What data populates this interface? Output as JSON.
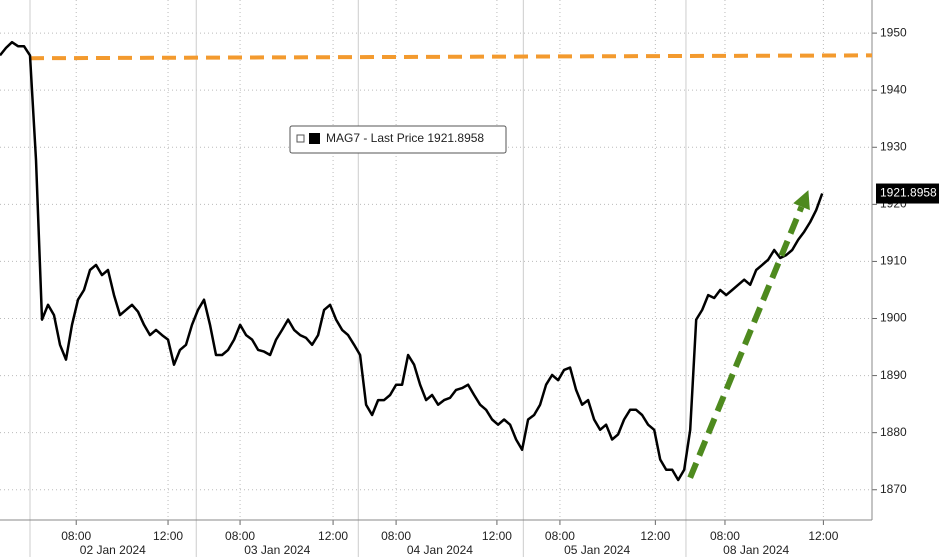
{
  "chart_data": {
    "type": "line",
    "legend_text": "MAG7 - Last Price 1921.8958",
    "last_price_label": "1921.8958",
    "series": [
      {
        "name": "MAG7",
        "color": "#000000",
        "values": [
          1946.1,
          1947.4,
          1948.4,
          1947.7,
          1947.7,
          1946.1,
          1927.8,
          1899.8,
          1902.4,
          1900.6,
          1895.4,
          1892.8,
          1898.9,
          1903.3,
          1905.0,
          1908.5,
          1909.4,
          1907.6,
          1908.5,
          1904.1,
          1900.6,
          1901.5,
          1902.4,
          1901.2,
          1898.9,
          1897.1,
          1898.0,
          1897.1,
          1896.3,
          1891.9,
          1894.5,
          1895.4,
          1898.9,
          1901.5,
          1903.3,
          1898.9,
          1893.6,
          1893.6,
          1894.5,
          1896.3,
          1898.9,
          1897.1,
          1896.3,
          1894.5,
          1894.2,
          1893.6,
          1896.3,
          1898.0,
          1899.8,
          1898.0,
          1897.1,
          1896.6,
          1895.4,
          1897.1,
          1901.5,
          1902.4,
          1899.8,
          1898.0,
          1897.1,
          1895.4,
          1893.6,
          1884.9,
          1883.1,
          1885.7,
          1885.7,
          1886.6,
          1888.4,
          1888.4,
          1893.6,
          1891.9,
          1888.4,
          1885.7,
          1886.6,
          1884.9,
          1885.7,
          1886.1,
          1887.5,
          1887.8,
          1888.4,
          1886.6,
          1884.9,
          1884.0,
          1882.3,
          1881.4,
          1882.3,
          1881.4,
          1878.8,
          1877.0,
          1882.3,
          1883.1,
          1884.9,
          1888.4,
          1890.1,
          1889.2,
          1891.0,
          1891.4,
          1887.5,
          1884.9,
          1885.7,
          1882.3,
          1880.5,
          1881.4,
          1878.8,
          1879.7,
          1882.3,
          1884.0,
          1884.0,
          1883.1,
          1881.4,
          1880.5,
          1875.3,
          1873.5,
          1873.5,
          1871.7,
          1873.5,
          1880.5,
          1899.8,
          1901.5,
          1904.1,
          1903.6,
          1905.0,
          1904.1,
          1905.0,
          1905.9,
          1906.8,
          1905.9,
          1908.5,
          1909.4,
          1910.3,
          1912.0,
          1910.6,
          1911.1,
          1912.0,
          1913.8,
          1915.2,
          1916.9,
          1919.0,
          1921.8958
        ]
      }
    ],
    "reference_line": {
      "color": "#f39a2e",
      "x": [
        5,
        145.3
      ],
      "values": [
        1945.6,
        1946.1
      ]
    },
    "arrow": {
      "color": "#4e8a1e",
      "x": [
        115,
        134.7
      ],
      "values": [
        1872.1,
        1922.5
      ]
    },
    "xlim": [
      0,
      145.3
    ],
    "xticks": [
      {
        "value": 12.7,
        "label": "08:00"
      },
      {
        "value": 28,
        "label": "12:00"
      },
      {
        "value": 40,
        "label": "08:00"
      },
      {
        "value": 55.5,
        "label": "12:00"
      },
      {
        "value": 66,
        "label": "08:00"
      },
      {
        "value": 82.8,
        "label": "12:00"
      },
      {
        "value": 93.3,
        "label": "08:00"
      },
      {
        "value": 109.2,
        "label": "12:00"
      },
      {
        "value": 120.8,
        "label": "08:00"
      },
      {
        "value": 137.2,
        "label": "12:00"
      }
    ],
    "day_separators": [
      5,
      32.7,
      59.7,
      87.2,
      114.3
    ],
    "day_labels": [
      {
        "value": 18.8,
        "label": "02 Jan 2024"
      },
      {
        "value": 46.2,
        "label": "03 Jan 2024"
      },
      {
        "value": 73.3,
        "label": "04 Jan 2024"
      },
      {
        "value": 99.5,
        "label": "05 Jan 2024"
      },
      {
        "value": 126,
        "label": "08 Jan 2024"
      }
    ],
    "ylim": [
      1864.7,
      1955.8
    ],
    "yticks": [
      1870,
      1880,
      1890,
      1900,
      1910,
      1920,
      1930,
      1940,
      1950
    ],
    "grid": true
  }
}
